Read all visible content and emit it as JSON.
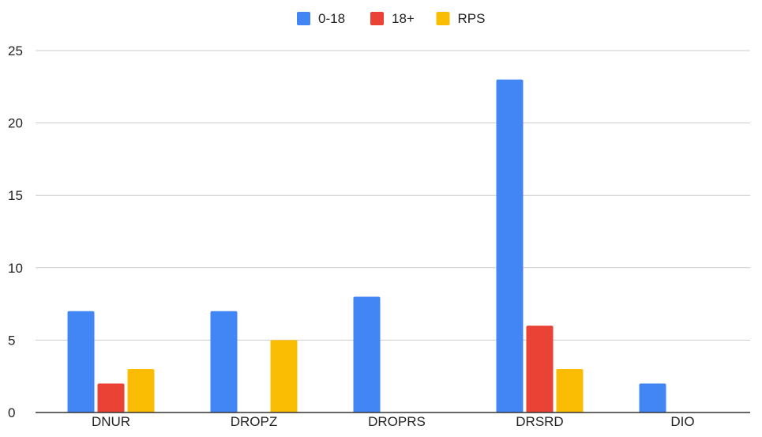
{
  "chart_data": {
    "type": "bar",
    "categories": [
      "DNUR",
      "DROPZ",
      "DROPRS",
      "DRSRD",
      "DIO"
    ],
    "series": [
      {
        "name": "0-18",
        "color": "#4285F4",
        "values": [
          7,
          7,
          8,
          23,
          2
        ]
      },
      {
        "name": "18+",
        "color": "#EA4335",
        "values": [
          2,
          0,
          0,
          6,
          0
        ]
      },
      {
        "name": "RPS",
        "color": "#FBBC04",
        "values": [
          3,
          5,
          0,
          3,
          0
        ]
      }
    ],
    "ylim": [
      0,
      25
    ],
    "yticks": [
      0,
      5,
      10,
      15,
      20,
      25
    ],
    "grid": true,
    "legend_position": "top-center",
    "title": "",
    "xlabel": "",
    "ylabel": ""
  }
}
